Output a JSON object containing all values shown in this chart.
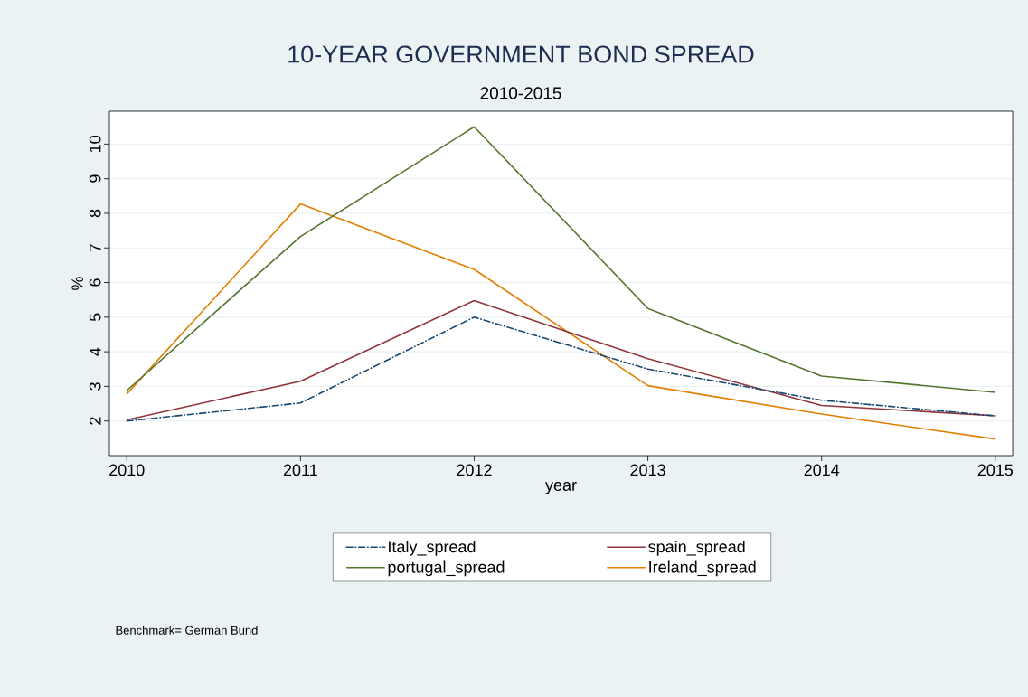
{
  "chart_data": {
    "type": "line",
    "title": "10-YEAR GOVERNMENT BOND SPREAD",
    "subtitle": "2010-2015",
    "xlabel": "year",
    "ylabel": "%",
    "x": [
      2010,
      2011,
      2012,
      2013,
      2014,
      2015
    ],
    "series": [
      {
        "name": "Italy_spread",
        "color": "#1a476f",
        "line_style": "dashdot",
        "values": [
          2.0,
          2.52,
          5.0,
          3.5,
          2.6,
          2.15
        ]
      },
      {
        "name": "spain_spread",
        "color": "#90353b",
        "line_style": "solid",
        "values": [
          2.03,
          3.15,
          5.48,
          3.8,
          2.45,
          2.15
        ]
      },
      {
        "name": "portugal_spread",
        "color": "#55752f",
        "line_style": "solid",
        "values": [
          2.88,
          7.33,
          10.5,
          5.25,
          3.3,
          2.83
        ]
      },
      {
        "name": "Ireland_spread",
        "color": "#e37e00",
        "line_style": "solid",
        "values": [
          2.78,
          8.27,
          6.38,
          3.02,
          2.2,
          1.48
        ]
      }
    ],
    "xlim": [
      2009.9,
      2015.1
    ],
    "ylim": [
      1.0,
      10.95
    ],
    "xticks": [
      2010,
      2011,
      2012,
      2013,
      2014,
      2015
    ],
    "yticks": [
      2,
      3,
      4,
      5,
      6,
      7,
      8,
      9,
      10
    ],
    "grid": "y",
    "legend": "bottom",
    "annotations": [
      "Benchmark= German Bund"
    ]
  }
}
